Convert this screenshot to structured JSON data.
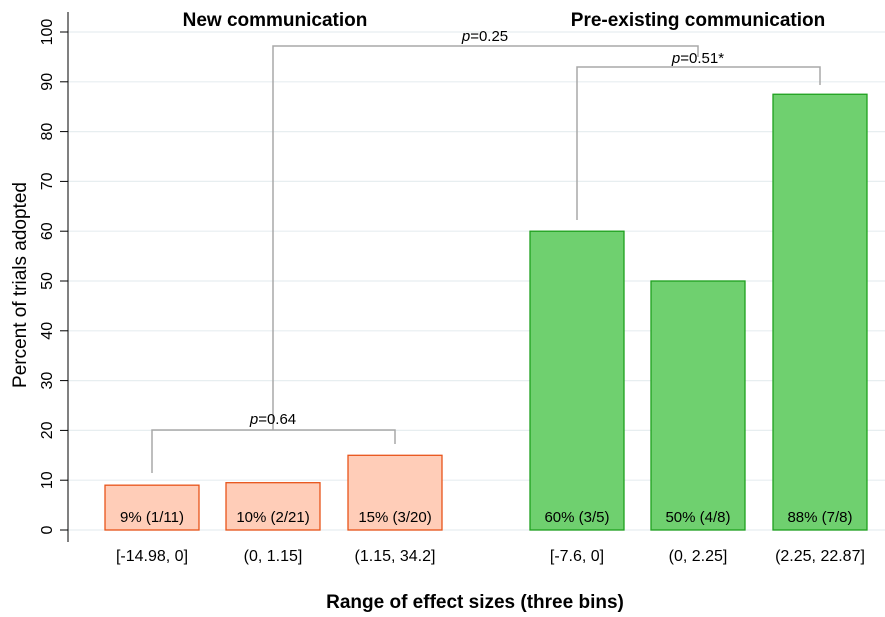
{
  "chart_data": {
    "type": "bar",
    "xlabel": "Range of effect sizes (three bins)",
    "ylabel": "Percent of trials adopted",
    "ylim": [
      0,
      100
    ],
    "yticks": [
      0,
      10,
      20,
      30,
      40,
      50,
      60,
      70,
      80,
      90,
      100
    ],
    "grid": true,
    "groups": [
      {
        "title": "New communication",
        "color": "#ffcdb8",
        "edge_color": "#e8541a",
        "bars": [
          {
            "category": "[-14.98, 0]",
            "value": 9,
            "label": "9% (1/11)"
          },
          {
            "category": "(0, 1.15]",
            "value": 9.5,
            "label": "10% (2/21)"
          },
          {
            "category": "(1.15, 34.2]",
            "value": 15,
            "label": "15% (3/20)"
          }
        ]
      },
      {
        "title": "Pre-existing communication",
        "color": "#6fd06f",
        "edge_color": "#1ea01e",
        "bars": [
          {
            "category": "[-7.6, 0]",
            "value": 60,
            "label": "60% (3/5)"
          },
          {
            "category": "(0, 2.25]",
            "value": 50,
            "label": "50% (4/8)"
          },
          {
            "category": "(2.25, 22.87]",
            "value": 87.5,
            "label": "88% (7/8)"
          }
        ]
      }
    ],
    "annotations": [
      {
        "p_symbol": "p",
        "text": "=0.64"
      },
      {
        "p_symbol": "p",
        "text": "=0.25"
      },
      {
        "p_symbol": "p",
        "text": "=0.51*"
      }
    ]
  }
}
